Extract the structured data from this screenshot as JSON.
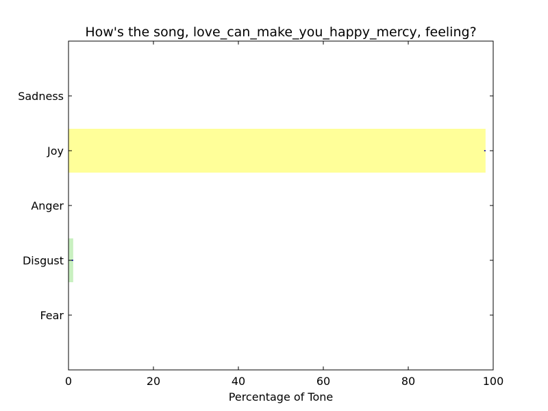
{
  "chart_data": {
    "type": "bar",
    "orientation": "horizontal",
    "title": "How's the song, love_can_make_you_happy_mercy, feeling?",
    "xlabel": "Percentage of Tone",
    "ylabel": "",
    "xlim": [
      0,
      100
    ],
    "xticks": [
      "0",
      "20",
      "40",
      "60",
      "80",
      "100"
    ],
    "categories": [
      "Fear",
      "Disgust",
      "Anger",
      "Joy",
      "Sadness"
    ],
    "values": [
      0,
      1.1,
      0,
      98.2,
      0
    ],
    "bar_colors": [
      "#ffffff",
      "#c8f0c0",
      "#ffffff",
      "#ffff99",
      "#ffffff"
    ],
    "grid": false,
    "legend": "none"
  }
}
